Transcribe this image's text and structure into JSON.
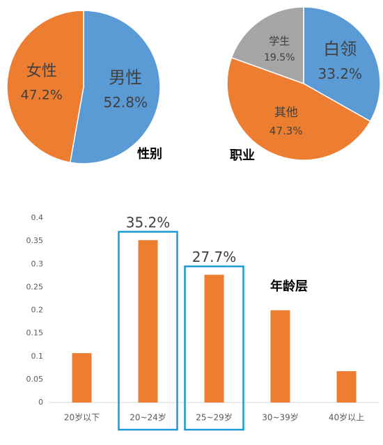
{
  "chart_data": [
    {
      "type": "pie",
      "title": "性别",
      "categories": [
        "男性",
        "女性"
      ],
      "values": [
        52.8,
        47.2
      ],
      "value_labels": [
        "52.8%",
        "47.2%"
      ],
      "colors": [
        "#5b9bd5",
        "#ed7d31"
      ]
    },
    {
      "type": "pie",
      "title": "职业",
      "categories": [
        "白领",
        "其他",
        "学生"
      ],
      "values": [
        33.2,
        47.3,
        19.5
      ],
      "value_labels": [
        "33.2%",
        "47.3%",
        "19.5%"
      ],
      "colors": [
        "#5b9bd5",
        "#ed7d31",
        "#a5a5a5"
      ]
    },
    {
      "type": "bar",
      "title": "年龄层",
      "categories": [
        "20岁以下",
        "20~24岁",
        "25~29岁",
        "30~39岁",
        "40岁以上"
      ],
      "values": [
        0.107,
        0.352,
        0.277,
        0.2,
        0.068
      ],
      "value_labels": [
        null,
        "35.2%",
        "27.7%",
        null,
        null
      ],
      "color": "#ed7d31",
      "ylim": [
        0,
        0.4
      ],
      "yticks": [
        0,
        0.05,
        0.1,
        0.15,
        0.2,
        0.25,
        0.3,
        0.35,
        0.4
      ],
      "grid": false
    }
  ]
}
